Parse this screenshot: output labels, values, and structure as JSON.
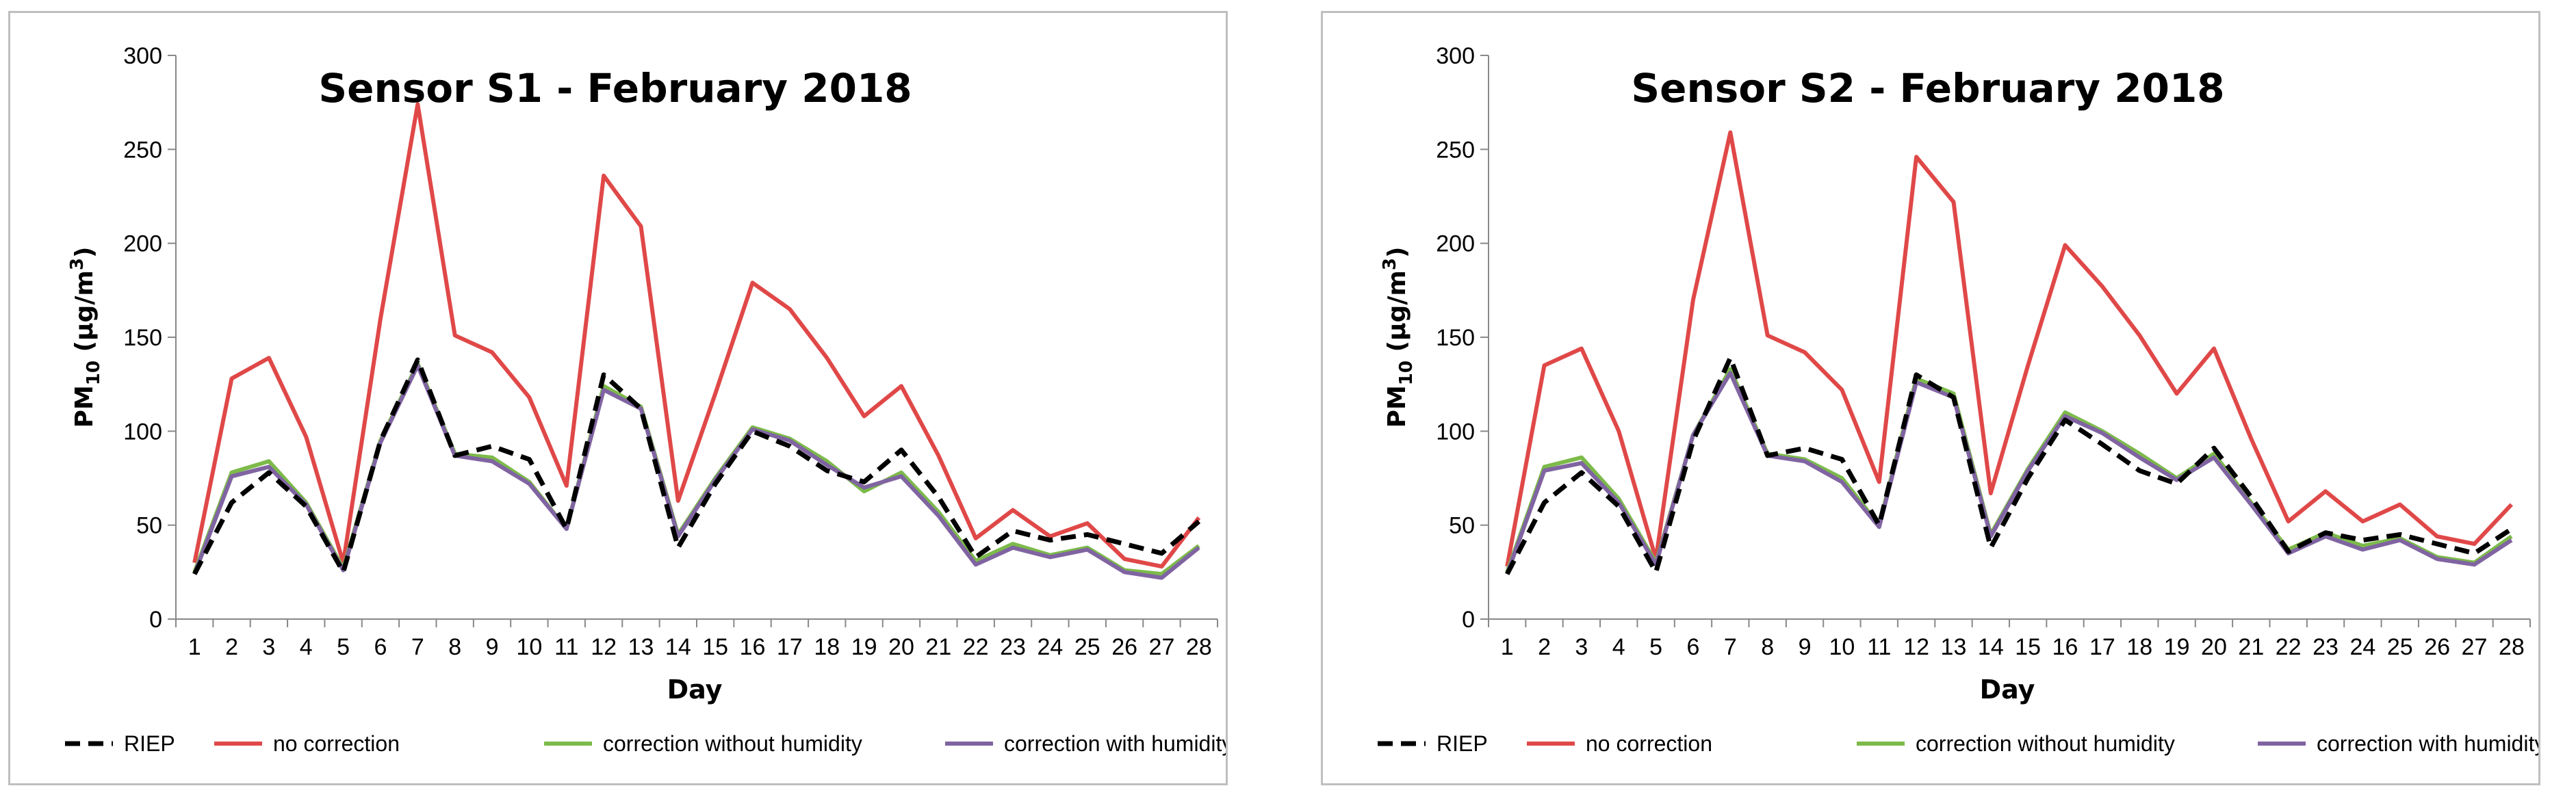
{
  "chart_data": [
    {
      "type": "line",
      "title": "Sensor S1 - February 2018",
      "xlabel": "Day",
      "ylabel": {
        "main": "PM",
        "sub": "10",
        "unit_open": " (µg/m",
        "unit_sup": "3",
        "unit_close": ")"
      },
      "ylim": [
        0,
        300
      ],
      "yticks": [
        0,
        50,
        100,
        150,
        200,
        250,
        300
      ],
      "categories": [
        "1",
        "2",
        "3",
        "4",
        "5",
        "6",
        "7",
        "8",
        "9",
        "10",
        "11",
        "12",
        "13",
        "14",
        "15",
        "16",
        "17",
        "18",
        "19",
        "20",
        "21",
        "22",
        "23",
        "24",
        "25",
        "26",
        "27",
        "28"
      ],
      "legend_position": "bottom",
      "series": [
        {
          "name": "RIEP",
          "color": "#000000",
          "dashed": true,
          "values": [
            24,
            62,
            78,
            60,
            25,
            95,
            138,
            87,
            92,
            85,
            48,
            130,
            112,
            38,
            72,
            100,
            92,
            79,
            73,
            90,
            65,
            33,
            47,
            42,
            45,
            40,
            35,
            52
          ]
        },
        {
          "name": "no correction",
          "color": "#e04848",
          "dashed": false,
          "values": [
            30,
            128,
            139,
            97,
            30,
            160,
            274,
            151,
            142,
            118,
            71,
            236,
            209,
            63,
            120,
            179,
            165,
            139,
            108,
            124,
            87,
            43,
            58,
            44,
            51,
            32,
            28,
            54
          ]
        },
        {
          "name": "correction without humidity",
          "color": "#7cba4a",
          "dashed": false,
          "values": [
            25,
            78,
            84,
            62,
            27,
            95,
            136,
            88,
            86,
            73,
            48,
            124,
            113,
            45,
            75,
            102,
            96,
            84,
            68,
            78,
            57,
            31,
            40,
            34,
            38,
            26,
            24,
            39
          ]
        },
        {
          "name": "correction with humidity",
          "color": "#8064a2",
          "dashed": false,
          "values": [
            24,
            76,
            81,
            61,
            26,
            94,
            135,
            87,
            84,
            72,
            48,
            122,
            112,
            44,
            74,
            101,
            95,
            82,
            70,
            76,
            55,
            29,
            38,
            33,
            37,
            25,
            22,
            38
          ]
        }
      ]
    },
    {
      "type": "line",
      "title": "Sensor S2 - February 2018",
      "xlabel": "Day",
      "ylabel": {
        "main": "PM",
        "sub": "10",
        "unit_open": " (µg/m",
        "unit_sup": "3",
        "unit_close": ")"
      },
      "ylim": [
        0,
        300
      ],
      "yticks": [
        0,
        50,
        100,
        150,
        200,
        250,
        300
      ],
      "categories": [
        "1",
        "2",
        "3",
        "4",
        "5",
        "6",
        "7",
        "8",
        "9",
        "10",
        "11",
        "12",
        "13",
        "14",
        "15",
        "16",
        "17",
        "18",
        "19",
        "20",
        "21",
        "22",
        "23",
        "24",
        "25",
        "26",
        "27",
        "28"
      ],
      "legend_position": "bottom",
      "series": [
        {
          "name": "RIEP",
          "color": "#000000",
          "dashed": true,
          "values": [
            24,
            62,
            78,
            60,
            25,
            95,
            139,
            87,
            91,
            85,
            50,
            130,
            118,
            38,
            75,
            106,
            93,
            79,
            72,
            91,
            65,
            36,
            46,
            42,
            45,
            40,
            35,
            48
          ]
        },
        {
          "name": "no correction",
          "color": "#e04848",
          "dashed": false,
          "values": [
            28,
            135,
            144,
            100,
            32,
            170,
            259,
            151,
            142,
            122,
            73,
            246,
            222,
            67,
            135,
            199,
            177,
            151,
            120,
            144,
            96,
            52,
            68,
            52,
            61,
            44,
            40,
            61
          ]
        },
        {
          "name": "correction without humidity",
          "color": "#7cba4a",
          "dashed": false,
          "values": [
            25,
            81,
            86,
            64,
            30,
            98,
            133,
            88,
            85,
            75,
            50,
            128,
            120,
            45,
            80,
            110,
            100,
            88,
            75,
            88,
            62,
            37,
            46,
            39,
            43,
            33,
            30,
            44
          ]
        },
        {
          "name": "correction with humidity",
          "color": "#8064a2",
          "dashed": false,
          "values": [
            24,
            79,
            83,
            62,
            29,
            98,
            131,
            87,
            84,
            73,
            49,
            126,
            118,
            44,
            79,
            108,
            99,
            86,
            74,
            86,
            61,
            35,
            44,
            37,
            42,
            32,
            29,
            42
          ]
        }
      ]
    }
  ]
}
